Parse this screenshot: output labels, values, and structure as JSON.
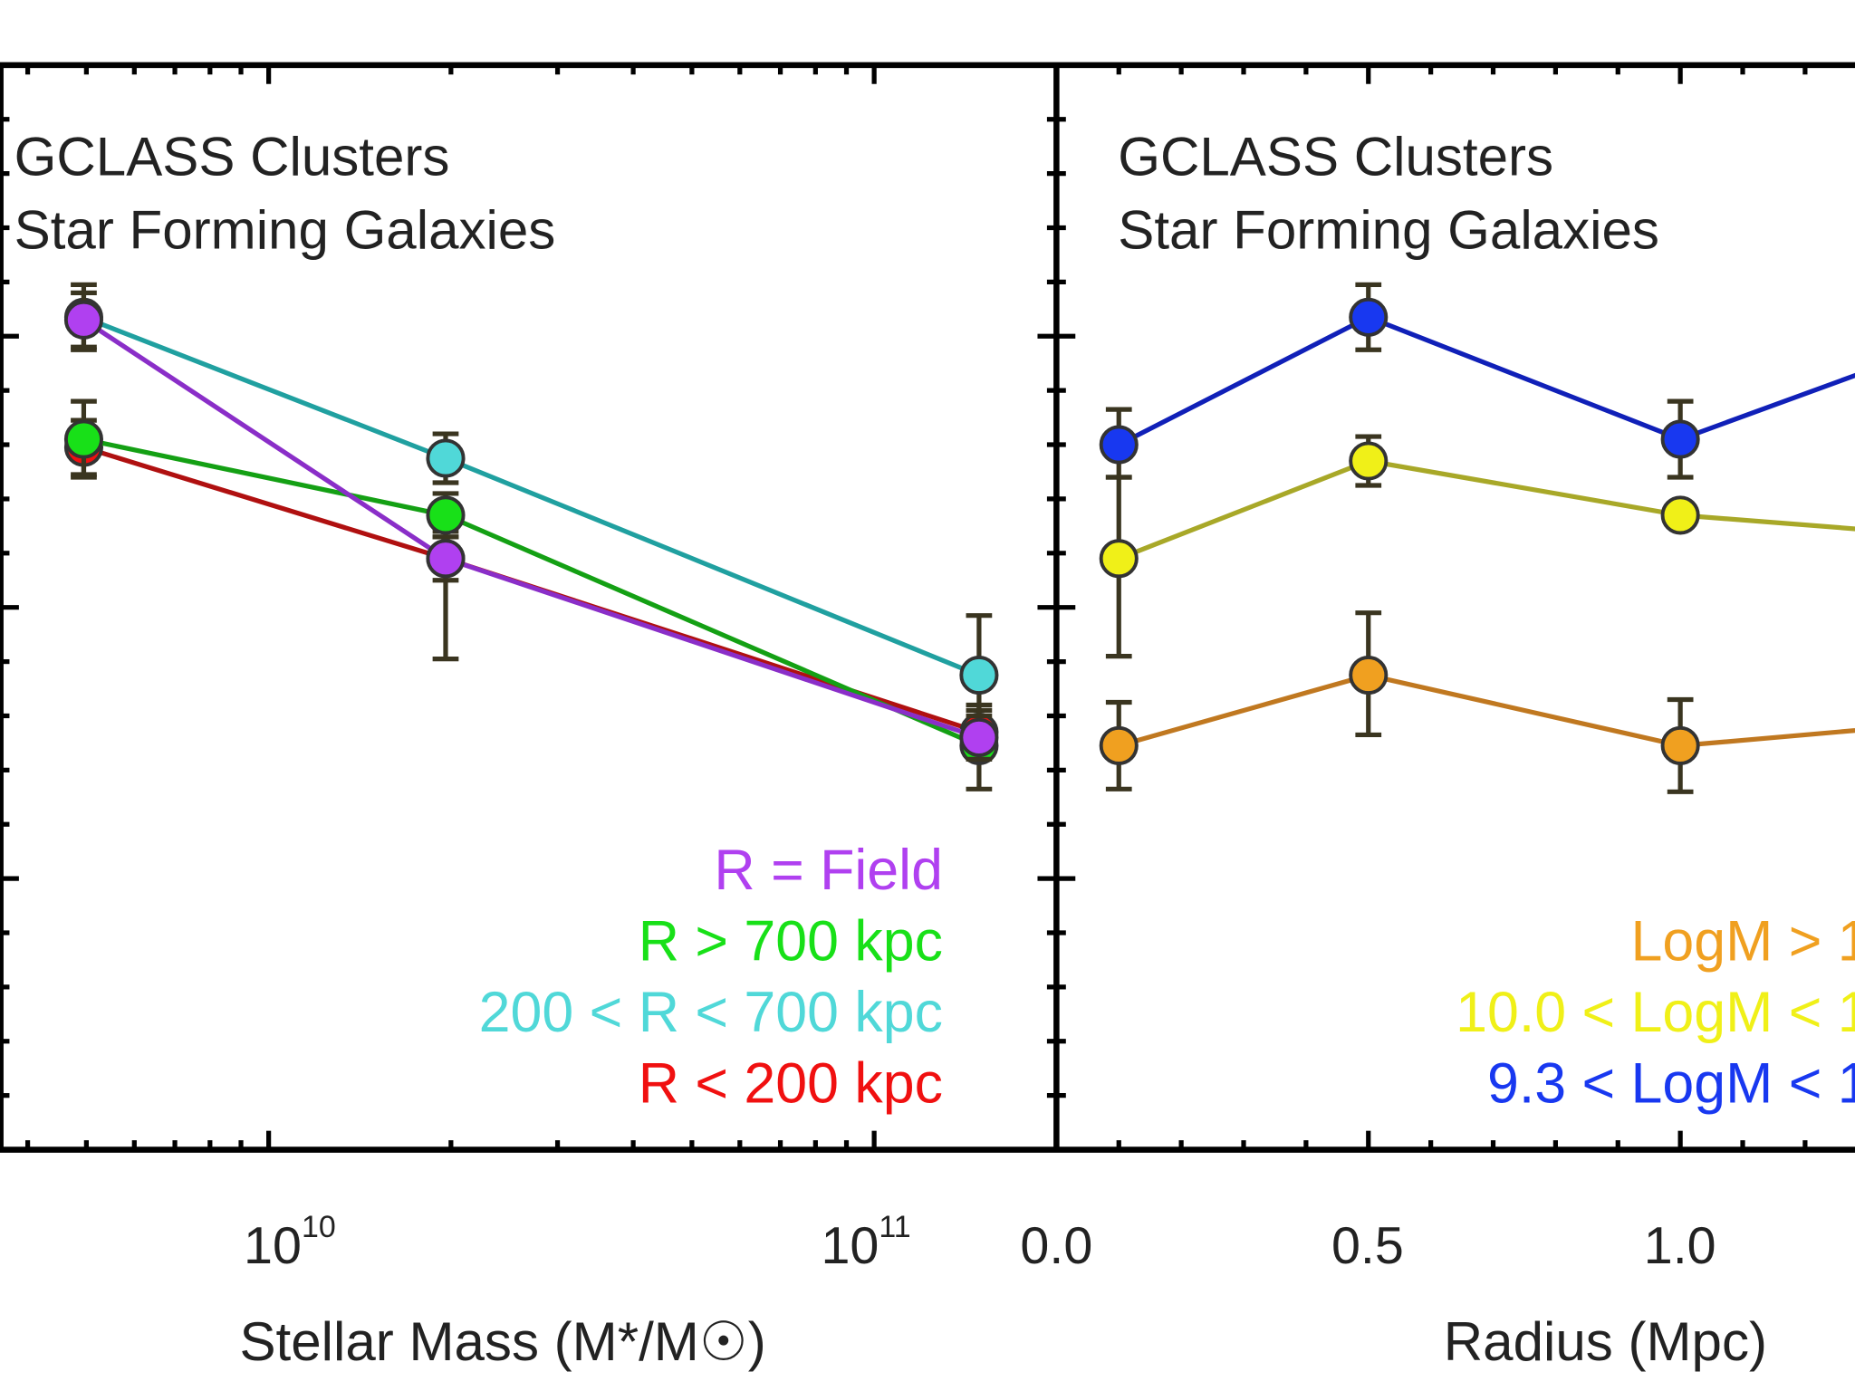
{
  "chart_data": [
    {
      "type": "line",
      "panel": "left",
      "annotation": [
        "GCLASS Clusters",
        "Star Forming Galaxies"
      ],
      "xlabel": "Stellar Mass (M*/M☉)",
      "xscale": "log",
      "xlim": [
        3600000000.0,
        200000000000.0
      ],
      "xticks": [
        {
          "value": 10000000000.0,
          "base": "10",
          "exp": "10"
        },
        {
          "value": 100000000000.0,
          "base": "10",
          "exp": "11"
        }
      ],
      "ylabel": "",
      "ylim": [
        0,
        4
      ],
      "yticks_labeled": false,
      "grid": false,
      "legend_placement": "bottom-right",
      "series": [
        {
          "name": "R = Field",
          "color": "#b040f0",
          "line": "#8a2ec8",
          "x": [
            4950000000.0,
            19600000000.0,
            149000000000.0
          ],
          "y": [
            3.06,
            2.18,
            1.52
          ],
          "err": [
            [
              0.1,
              0.1
            ],
            [
              0.08,
              0.08
            ],
            [
              0.08,
              0.08
            ]
          ]
        },
        {
          "name": "R > 700 kpc",
          "color": "#18e018",
          "line": "#14a014",
          "x": [
            4950000000.0,
            19600000000.0,
            149000000000.0
          ],
          "y": [
            2.62,
            2.34,
            1.49
          ],
          "err": [
            [
              0.14,
              0.14
            ],
            [
              0.08,
              0.08
            ],
            [
              0.16,
              0.15
            ]
          ]
        },
        {
          "name": "200 < R < 700 kpc",
          "color": "#50d8d8",
          "line": "#20a0a0",
          "x": [
            4950000000.0,
            19600000000.0,
            149000000000.0
          ],
          "y": [
            3.07,
            2.55,
            1.75
          ],
          "err": [
            [
              0.12,
              0.12
            ],
            [
              0.09,
              0.09
            ],
            [
              0.22,
              0.22
            ]
          ]
        },
        {
          "name": "R < 200 kpc",
          "color": "#f01010",
          "line": "#b01010",
          "x": [
            4950000000.0,
            19600000000.0,
            149000000000.0
          ],
          "y": [
            2.59,
            2.18,
            1.54
          ],
          "err": [
            [
              0.1,
              0.1
            ],
            [
              0.37,
              0.1
            ],
            [
              0.08,
              0.08
            ]
          ]
        }
      ]
    },
    {
      "type": "line",
      "panel": "right",
      "annotation": [
        "GCLASS Clusters",
        "Star Forming Galaxies"
      ],
      "xlabel": "Radius (Mpc)",
      "xscale": "linear",
      "xlim": [
        0.0,
        1.28
      ],
      "xticks": [
        {
          "value": 0.0,
          "label": "0.0"
        },
        {
          "value": 0.5,
          "label": "0.5"
        },
        {
          "value": 1.0,
          "label": "1.0"
        }
      ],
      "ylabel": "",
      "ylim": [
        0,
        4
      ],
      "yticks_labeled": false,
      "grid": false,
      "legend_placement": "bottom-right",
      "series": [
        {
          "name": "LogM > 1",
          "color": "#f0a020",
          "line": "#c07820",
          "x": [
            0.1,
            0.5,
            1.0,
            1.5
          ],
          "y": [
            1.49,
            1.75,
            1.49,
            1.59
          ],
          "err": [
            [
              0.16,
              0.16
            ],
            [
              0.22,
              0.23
            ],
            [
              0.17,
              0.17
            ],
            [
              0,
              0
            ]
          ]
        },
        {
          "name": "10.0 < LogM < 1",
          "color": "#f0f018",
          "line": "#a8a828",
          "x": [
            0.1,
            0.5,
            1.0,
            1.5
          ],
          "y": [
            2.18,
            2.54,
            2.34,
            2.25
          ],
          "err": [
            [
              0.36,
              0.3
            ],
            [
              0.09,
              0.09
            ],
            [
              0.03,
              0.03
            ],
            [
              0,
              0
            ]
          ]
        },
        {
          "name": "9.3 < LogM < 1",
          "color": "#1838f0",
          "line": "#1020b8",
          "x": [
            0.1,
            0.5,
            1.0,
            1.5
          ],
          "y": [
            2.6,
            3.07,
            2.62,
            3.04
          ],
          "err": [
            [
              0.12,
              0.13
            ],
            [
              0.12,
              0.12
            ],
            [
              0.14,
              0.14
            ],
            [
              0,
              0
            ]
          ]
        }
      ]
    }
  ]
}
